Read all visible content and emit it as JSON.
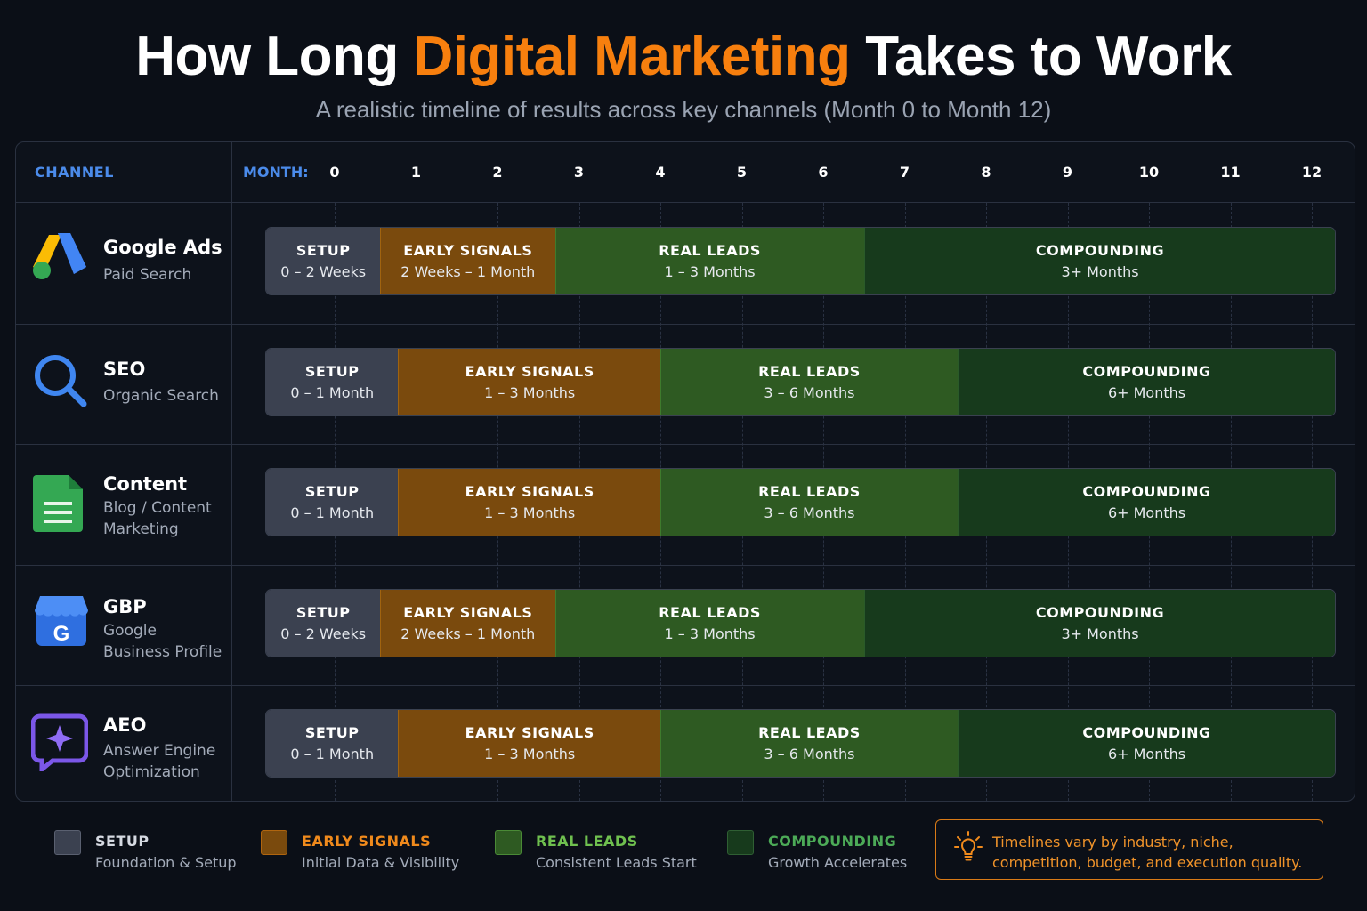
{
  "title_prefix": "How Long ",
  "title_highlight": "Digital Marketing",
  "title_suffix": " Takes to Work",
  "subtitle": "A realistic timeline of results across key channels (Month 0 to Month 12)",
  "header": {
    "channel": "CHANNEL",
    "month": "MONTH:"
  },
  "colors": {
    "setup": "#3b4150",
    "early": "#7a4a0d",
    "real": "#2e5a22",
    "comp": "#173a1c",
    "accent": "#f77f0e",
    "header_blue": "#4b8bea"
  },
  "chart_data": {
    "type": "bar",
    "orientation": "horizontal-stacked-timeline",
    "x_ticks": [
      "0",
      "1",
      "2",
      "3",
      "4",
      "5",
      "6",
      "7",
      "8",
      "9",
      "10",
      "11",
      "12"
    ],
    "xlim": [
      0,
      13.4
    ],
    "channels": [
      {
        "name": "Google Ads",
        "sub": "Paid Search",
        "icon": "google-ads-icon",
        "segments": [
          {
            "phase": "setup",
            "label": "SETUP",
            "desc": "0 – 2 Weeks",
            "start": -0.85,
            "end": 0.55
          },
          {
            "phase": "early",
            "label": "EARLY SIGNALS",
            "desc": "2 Weeks – 1 Month",
            "start": 0.55,
            "end": 2.7
          },
          {
            "phase": "real",
            "label": "REAL LEADS",
            "desc": "1 – 3 Months",
            "start": 2.7,
            "end": 6.5
          },
          {
            "phase": "comp",
            "label": "COMPOUNDING",
            "desc": "3+ Months",
            "start": 6.5,
            "end": 12.3
          }
        ]
      },
      {
        "name": "SEO",
        "sub": "Organic Search",
        "icon": "search-icon",
        "segments": [
          {
            "phase": "setup",
            "label": "SETUP",
            "desc": "0 – 1 Month",
            "start": -0.85,
            "end": 0.77
          },
          {
            "phase": "early",
            "label": "EARLY SIGNALS",
            "desc": "1 – 3 Months",
            "start": 0.77,
            "end": 4.0
          },
          {
            "phase": "real",
            "label": "REAL LEADS",
            "desc": "3 – 6 Months",
            "start": 4.0,
            "end": 7.65
          },
          {
            "phase": "comp",
            "label": "COMPOUNDING",
            "desc": "6+ Months",
            "start": 7.65,
            "end": 12.3
          }
        ]
      },
      {
        "name": "Content",
        "sub": "Blog / Content Marketing",
        "icon": "document-icon",
        "segments": [
          {
            "phase": "setup",
            "label": "SETUP",
            "desc": "0 – 1 Month",
            "start": -0.85,
            "end": 0.77
          },
          {
            "phase": "early",
            "label": "EARLY SIGNALS",
            "desc": "1 – 3 Months",
            "start": 0.77,
            "end": 4.0
          },
          {
            "phase": "real",
            "label": "REAL LEADS",
            "desc": "3 – 6 Months",
            "start": 4.0,
            "end": 7.65
          },
          {
            "phase": "comp",
            "label": "COMPOUNDING",
            "desc": "6+ Months",
            "start": 7.65,
            "end": 12.3
          }
        ]
      },
      {
        "name": "GBP",
        "sub": "Google Business Profile",
        "icon": "storefront-icon",
        "segments": [
          {
            "phase": "setup",
            "label": "SETUP",
            "desc": "0 – 2 Weeks",
            "start": -0.85,
            "end": 0.55
          },
          {
            "phase": "early",
            "label": "EARLY SIGNALS",
            "desc": "2 Weeks – 1 Month",
            "start": 0.55,
            "end": 2.7
          },
          {
            "phase": "real",
            "label": "REAL LEADS",
            "desc": "1 – 3 Months",
            "start": 2.7,
            "end": 6.5
          },
          {
            "phase": "comp",
            "label": "COMPOUNDING",
            "desc": "3+ Months",
            "start": 6.5,
            "end": 12.3
          }
        ]
      },
      {
        "name": "AEO",
        "sub": "Answer Engine Optimization",
        "icon": "chat-sparkle-icon",
        "segments": [
          {
            "phase": "setup",
            "label": "SETUP",
            "desc": "0 – 1 Month",
            "start": -0.85,
            "end": 0.77
          },
          {
            "phase": "early",
            "label": "EARLY SIGNALS",
            "desc": "1 – 3 Months",
            "start": 0.77,
            "end": 4.0
          },
          {
            "phase": "real",
            "label": "REAL LEADS",
            "desc": "3 – 6 Months",
            "start": 4.0,
            "end": 7.65
          },
          {
            "phase": "comp",
            "label": "COMPOUNDING",
            "desc": "6+ Months",
            "start": 7.65,
            "end": 12.3
          }
        ]
      }
    ]
  },
  "legend": [
    {
      "phase": "setup",
      "label": "SETUP",
      "desc": "Foundation & Setup",
      "color": "#3b4150",
      "text_color": "#d6dae2"
    },
    {
      "phase": "early",
      "label": "EARLY SIGNALS",
      "desc": "Initial Data & Visibility",
      "color": "#7a4a0d",
      "text_color": "#f08a1c"
    },
    {
      "phase": "real",
      "label": "REAL LEADS",
      "desc": "Consistent Leads Start",
      "color": "#2e5a22",
      "text_color": "#6fc04f"
    },
    {
      "phase": "comp",
      "label": "COMPOUNDING",
      "desc": "Growth Accelerates",
      "color": "#173a1c",
      "text_color": "#4caa57"
    }
  ],
  "note": {
    "icon": "lightbulb-icon",
    "text": "Timelines vary by industry, niche, competition, budget, and execution quality."
  }
}
